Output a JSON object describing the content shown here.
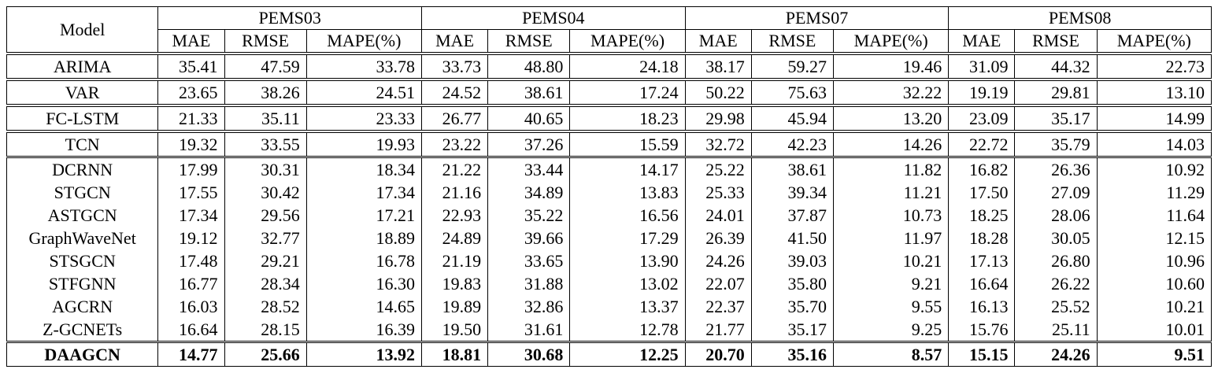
{
  "header": {
    "model_label": "Model",
    "datasets": [
      "PEMS03",
      "PEMS04",
      "PEMS07",
      "PEMS08"
    ],
    "metrics": [
      "MAE",
      "RMSE",
      "MAPE(%)"
    ]
  },
  "groups": [
    {
      "rows": [
        {
          "model": "ARIMA",
          "values": [
            "35.41",
            "47.59",
            "33.78",
            "33.73",
            "48.80",
            "24.18",
            "38.17",
            "59.27",
            "19.46",
            "31.09",
            "44.32",
            "22.73"
          ]
        },
        {
          "model": "VAR",
          "values": [
            "23.65",
            "38.26",
            "24.51",
            "24.52",
            "38.61",
            "17.24",
            "50.22",
            "75.63",
            "32.22",
            "19.19",
            "29.81",
            "13.10"
          ]
        },
        {
          "model": "FC-LSTM",
          "values": [
            "21.33",
            "35.11",
            "23.33",
            "26.77",
            "40.65",
            "18.23",
            "29.98",
            "45.94",
            "13.20",
            "23.09",
            "35.17",
            "14.99"
          ]
        },
        {
          "model": "TCN",
          "values": [
            "19.32",
            "33.55",
            "19.93",
            "23.22",
            "37.26",
            "15.59",
            "32.72",
            "42.23",
            "14.26",
            "22.72",
            "35.79",
            "14.03"
          ]
        }
      ]
    },
    {
      "rows": [
        {
          "model": "DCRNN",
          "values": [
            "17.99",
            "30.31",
            "18.34",
            "21.22",
            "33.44",
            "14.17",
            "25.22",
            "38.61",
            "11.82",
            "16.82",
            "26.36",
            "10.92"
          ]
        },
        {
          "model": "STGCN",
          "values": [
            "17.55",
            "30.42",
            "17.34",
            "21.16",
            "34.89",
            "13.83",
            "25.33",
            "39.34",
            "11.21",
            "17.50",
            "27.09",
            "11.29"
          ]
        },
        {
          "model": "ASTGCN",
          "values": [
            "17.34",
            "29.56",
            "17.21",
            "22.93",
            "35.22",
            "16.56",
            "24.01",
            "37.87",
            "10.73",
            "18.25",
            "28.06",
            "11.64"
          ]
        },
        {
          "model": "GraphWaveNet",
          "values": [
            "19.12",
            "32.77",
            "18.89",
            "24.89",
            "39.66",
            "17.29",
            "26.39",
            "41.50",
            "11.97",
            "18.28",
            "30.05",
            "12.15"
          ]
        },
        {
          "model": "STSGCN",
          "values": [
            "17.48",
            "29.21",
            "16.78",
            "21.19",
            "33.65",
            "13.90",
            "24.26",
            "39.03",
            "10.21",
            "17.13",
            "26.80",
            "10.96"
          ]
        },
        {
          "model": "STFGNN",
          "values": [
            "16.77",
            "28.34",
            "16.30",
            "19.83",
            "31.88",
            "13.02",
            "22.07",
            "35.80",
            "9.21",
            "16.64",
            "26.22",
            "10.60"
          ]
        },
        {
          "model": "AGCRN",
          "values": [
            "16.03",
            "28.52",
            "14.65",
            "19.89",
            "32.86",
            "13.37",
            "22.37",
            "35.70",
            "9.55",
            "16.13",
            "25.52",
            "10.21"
          ]
        },
        {
          "model": "Z-GCNETs",
          "values": [
            "16.64",
            "28.15",
            "16.39",
            "19.50",
            "31.61",
            "12.78",
            "21.77",
            "35.17",
            "9.25",
            "15.76",
            "25.11",
            "10.01"
          ]
        }
      ]
    },
    {
      "rows": [
        {
          "model": "DAAGCN",
          "values": [
            "14.77",
            "25.66",
            "13.92",
            "18.81",
            "30.68",
            "12.25",
            "20.70",
            "35.16",
            "8.57",
            "15.15",
            "24.26",
            "9.51"
          ]
        }
      ]
    }
  ]
}
